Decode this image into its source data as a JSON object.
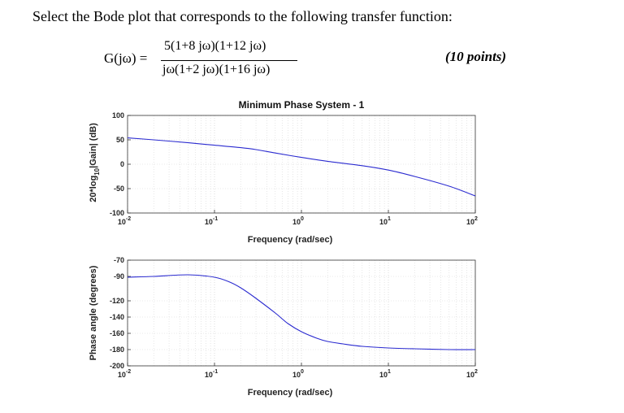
{
  "question": "Select the Bode plot that corresponds to the following transfer function:",
  "transfer_function": {
    "lhs": "G(jω) =",
    "numerator": "5(1+8 jω)(1+12 jω)",
    "denominator": "jω(1+2 jω)(1+16 jω)"
  },
  "points": "(10 points)",
  "colors": {
    "curve": "#2b2bd0",
    "grid": "#d6d6d6",
    "axis": "#333333"
  },
  "chart_data": [
    {
      "type": "line",
      "title": "Minimum Phase System - 1",
      "xlabel": "Frequency (rad/sec)",
      "ylabel_parts": [
        "20*log",
        "10",
        "|Gain| (dB)"
      ],
      "xscale": "log",
      "xlim": [
        0.01,
        100
      ],
      "ylim": [
        -100,
        100
      ],
      "yticks": [
        100,
        50,
        0,
        -50,
        -100
      ],
      "xtick_base": "10",
      "xtick_exponents": [
        "-2",
        "-1",
        "0",
        "1",
        "2"
      ],
      "grid": true,
      "series": [
        {
          "x": [
            0.01,
            0.02,
            0.05,
            0.1,
            0.2,
            0.3,
            0.5,
            1,
            2,
            5,
            10,
            20,
            50,
            100
          ],
          "values": [
            54,
            50,
            44,
            39,
            34,
            30,
            23,
            14,
            6,
            -3,
            -12,
            -25,
            -45,
            -65
          ]
        }
      ]
    },
    {
      "type": "line",
      "title": "",
      "xlabel": "Frequency (rad/sec)",
      "ylabel": "Phase angle (degrees)",
      "xscale": "log",
      "xlim": [
        0.01,
        100
      ],
      "ylim": [
        -200,
        -70
      ],
      "yticks": [
        -70,
        -90,
        -120,
        -140,
        -160,
        -180,
        -200
      ],
      "xtick_base": "10",
      "xtick_exponents": [
        "-2",
        "-1",
        "0",
        "1",
        "2"
      ],
      "grid": true,
      "series": [
        {
          "x": [
            0.01,
            0.02,
            0.05,
            0.1,
            0.15,
            0.2,
            0.3,
            0.5,
            0.7,
            1,
            1.5,
            2,
            3,
            5,
            10,
            20,
            50,
            100
          ],
          "values": [
            -91,
            -90,
            -88,
            -91,
            -97,
            -104,
            -117,
            -135,
            -148,
            -158,
            -166,
            -170,
            -173,
            -176,
            -178,
            -179,
            -180,
            -180
          ]
        }
      ]
    }
  ]
}
